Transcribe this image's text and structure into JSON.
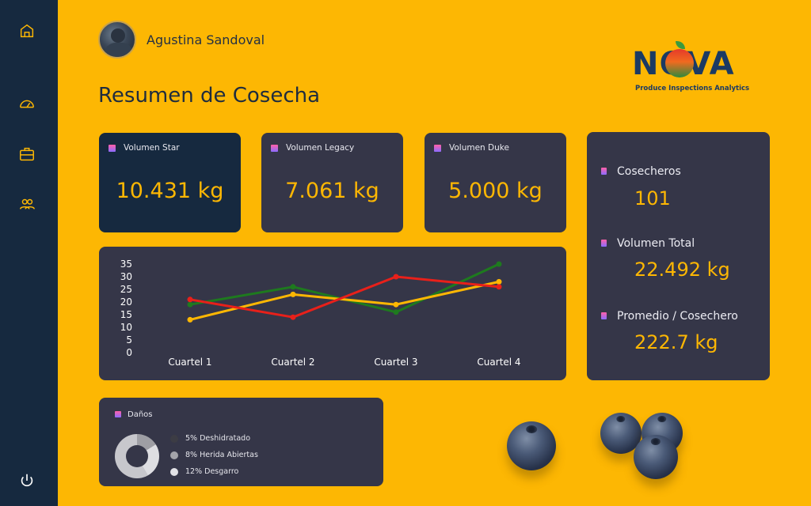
{
  "sidebar": {
    "icons": [
      "home-icon",
      "dashboard-gauge-icon",
      "briefcase-icon",
      "users-icon",
      "power-icon"
    ]
  },
  "user": {
    "name": "Agustina Sandoval"
  },
  "page": {
    "title": "Resumen de Cosecha"
  },
  "logo": {
    "word": "NOVA",
    "subtitle": "Produce Inspections Analytics"
  },
  "kpis": [
    {
      "label": "Volumen Star",
      "value": "10.431 kg"
    },
    {
      "label": "Volumen Legacy",
      "value": "7.061 kg"
    },
    {
      "label": "Volumen Duke",
      "value": "5.000 kg"
    }
  ],
  "stats": [
    {
      "label": "Cosecheros",
      "value": "101"
    },
    {
      "label": "Volumen Total",
      "value": "22.492 kg"
    },
    {
      "label": "Promedio / Cosechero",
      "value": "222.7 kg"
    }
  ],
  "chart_data": {
    "type": "line",
    "categories": [
      "Cuartel 1",
      "Cuartel 2",
      "Cuartel 3",
      "Cuartel 4"
    ],
    "ylim": [
      0,
      35
    ],
    "yticks": [
      0,
      5,
      10,
      15,
      20,
      25,
      30,
      35
    ],
    "grid": false,
    "series": [
      {
        "color": "#1e7a1e",
        "values": [
          19,
          26,
          16,
          35
        ]
      },
      {
        "color": "#FDB703",
        "values": [
          13,
          23,
          19,
          28
        ]
      },
      {
        "color": "#e8201a",
        "values": [
          21,
          14,
          30,
          26
        ]
      }
    ]
  },
  "danos": {
    "title": "Daños",
    "items": [
      {
        "label": "5% Deshidratado",
        "color": "#3c3c44"
      },
      {
        "label": "8% Herida Abiertas",
        "color": "#a4a4aa"
      },
      {
        "label": "12% Desgarro",
        "color": "#e2e2e6"
      }
    ]
  }
}
